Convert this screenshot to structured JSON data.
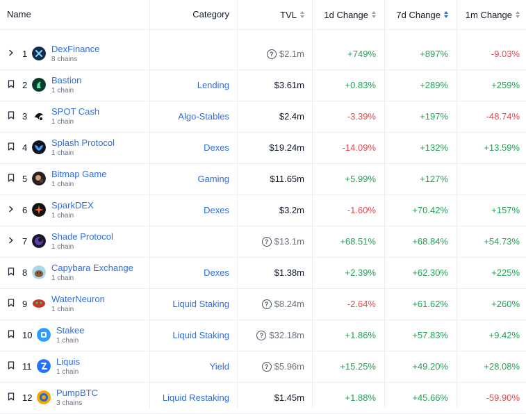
{
  "columns": {
    "name": "Name",
    "category": "Category",
    "tvl": "TVL",
    "change_1d": "1d Change",
    "change_7d": "7d Change",
    "change_1m": "1m Change",
    "sorted_by": "7d Change"
  },
  "colors": {
    "link": "#2f6fdc",
    "positive": "#22a355",
    "negative": "#e5484d"
  },
  "rows": [
    {
      "rank": "1",
      "name": "DexFinance",
      "chains": "8 chains",
      "category": "",
      "tvl": "$2.1m",
      "tvl_info": true,
      "d1": "+749%",
      "d7": "+897%",
      "m1": "-9.03%",
      "control": "chevron-right",
      "icon": "dexfinance-logo"
    },
    {
      "rank": "2",
      "name": "Bastion",
      "chains": "1 chain",
      "category": "Lending",
      "tvl": "$3.61m",
      "tvl_info": false,
      "d1": "+0.83%",
      "d7": "+289%",
      "m1": "+259%",
      "control": "bookmark",
      "icon": "bastion-logo"
    },
    {
      "rank": "3",
      "name": "SPOT Cash",
      "chains": "1 chain",
      "category": "Algo-Stables",
      "tvl": "$2.4m",
      "tvl_info": false,
      "d1": "-3.39%",
      "d7": "+197%",
      "m1": "-48.74%",
      "control": "bookmark",
      "icon": "spot-cash-logo"
    },
    {
      "rank": "4",
      "name": "Splash Protocol",
      "chains": "1 chain",
      "category": "Dexes",
      "tvl": "$19.24m",
      "tvl_info": false,
      "d1": "-14.09%",
      "d7": "+132%",
      "m1": "+13.59%",
      "control": "bookmark",
      "icon": "splash-protocol-logo"
    },
    {
      "rank": "5",
      "name": "Bitmap Game",
      "chains": "1 chain",
      "category": "Gaming",
      "tvl": "$11.65m",
      "tvl_info": false,
      "d1": "+5.99%",
      "d7": "+127%",
      "m1": "",
      "control": "bookmark",
      "icon": "bitmap-game-logo"
    },
    {
      "rank": "6",
      "name": "SparkDEX",
      "chains": "1 chain",
      "category": "Dexes",
      "tvl": "$3.2m",
      "tvl_info": false,
      "d1": "-1.60%",
      "d7": "+70.42%",
      "m1": "+157%",
      "control": "chevron-right",
      "icon": "sparkdex-logo"
    },
    {
      "rank": "7",
      "name": "Shade Protocol",
      "chains": "1 chain",
      "category": "",
      "tvl": "$13.1m",
      "tvl_info": true,
      "d1": "+68.51%",
      "d7": "+68.84%",
      "m1": "+54.73%",
      "control": "chevron-right",
      "icon": "shade-protocol-logo"
    },
    {
      "rank": "8",
      "name": "Capybara Exchange",
      "chains": "1 chain",
      "category": "Dexes",
      "tvl": "$1.38m",
      "tvl_info": false,
      "d1": "+2.39%",
      "d7": "+62.30%",
      "m1": "+225%",
      "control": "bookmark",
      "icon": "capybara-exchange-logo"
    },
    {
      "rank": "9",
      "name": "WaterNeuron",
      "chains": "1 chain",
      "category": "Liquid Staking",
      "tvl": "$8.24m",
      "tvl_info": true,
      "d1": "-2.64%",
      "d7": "+61.62%",
      "m1": "+260%",
      "control": "bookmark",
      "icon": "waterneuron-logo"
    },
    {
      "rank": "10",
      "name": "Stakee",
      "chains": "1 chain",
      "category": "Liquid Staking",
      "tvl": "$32.18m",
      "tvl_info": true,
      "d1": "+1.86%",
      "d7": "+57.83%",
      "m1": "+9.42%",
      "control": "bookmark",
      "icon": "stakee-logo"
    },
    {
      "rank": "11",
      "name": "Liquis",
      "chains": "1 chain",
      "category": "Yield",
      "tvl": "$5.96m",
      "tvl_info": true,
      "d1": "+15.25%",
      "d7": "+49.20%",
      "m1": "+28.08%",
      "control": "bookmark",
      "icon": "liquis-logo"
    },
    {
      "rank": "12",
      "name": "PumpBTC",
      "chains": "3 chains",
      "category": "Liquid Restaking",
      "tvl": "$1.45m",
      "tvl_info": false,
      "d1": "+1.88%",
      "d7": "+45.66%",
      "m1": "-59.90%",
      "control": "bookmark",
      "icon": "pumpbtc-logo"
    }
  ]
}
